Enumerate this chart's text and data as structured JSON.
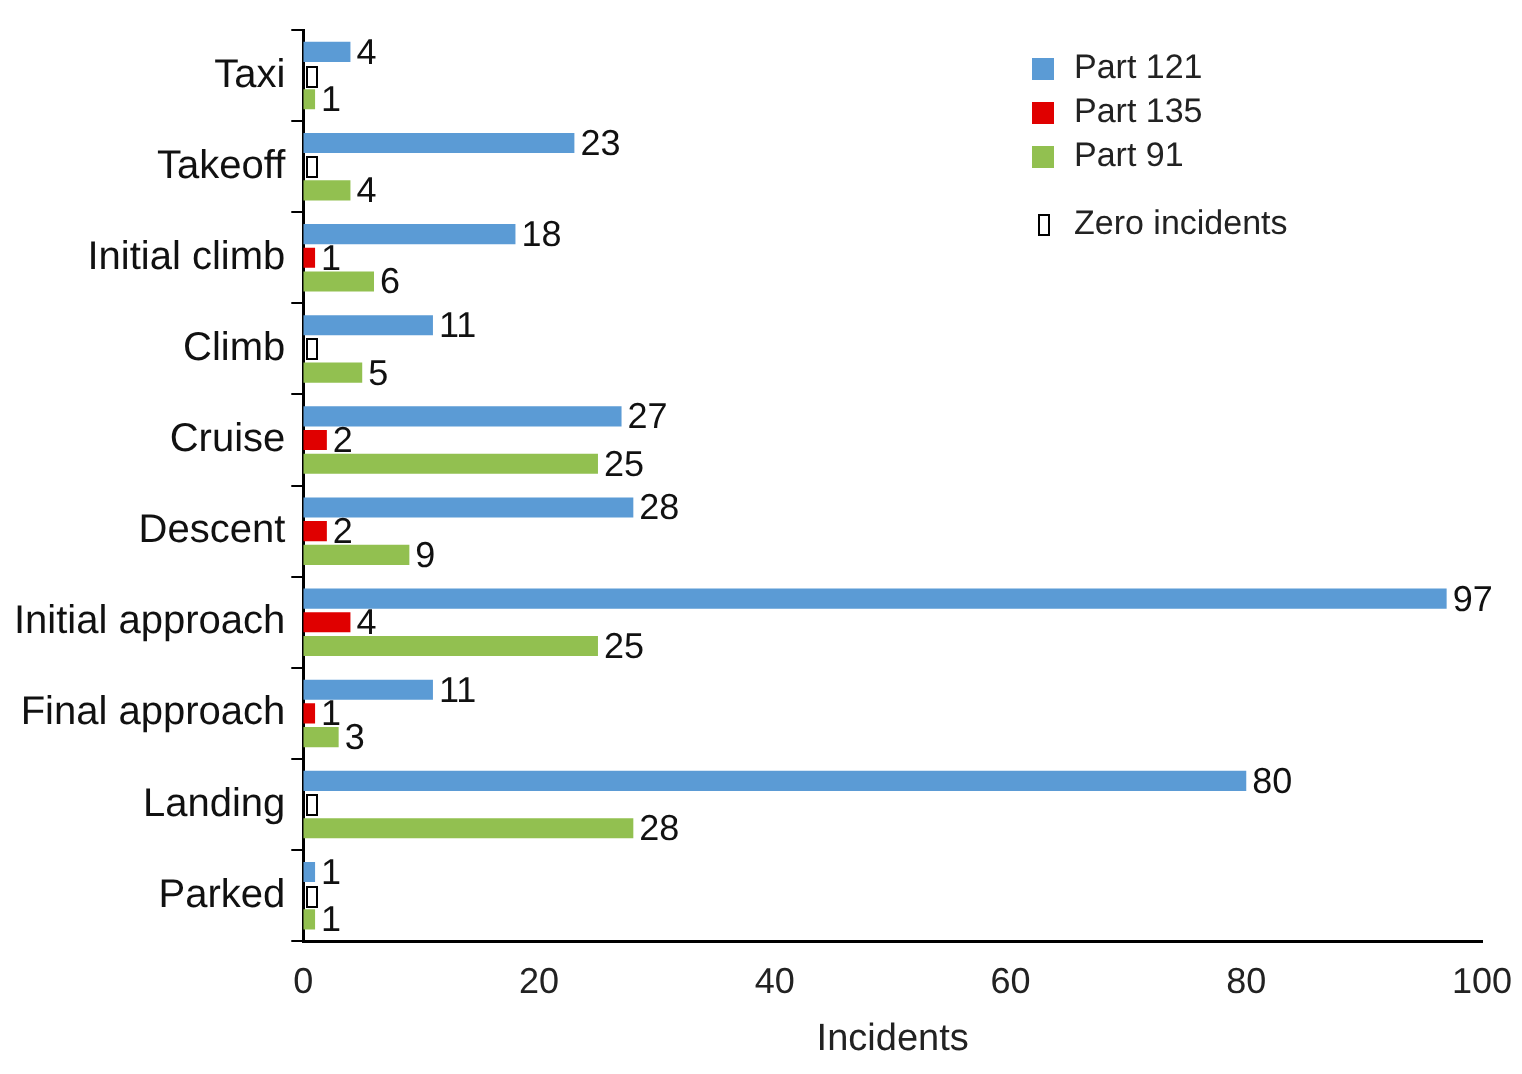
{
  "chart_data": {
    "type": "bar",
    "orientation": "horizontal",
    "xlabel": "Incidents",
    "categories": [
      "Taxi",
      "Takeoff",
      "Initial climb",
      "Climb",
      "Cruise",
      "Descent",
      "Initial approach",
      "Final approach",
      "Landing",
      "Parked"
    ],
    "series": [
      {
        "name": "Part 121",
        "color": "#5b9bd5",
        "values": [
          4,
          23,
          18,
          11,
          27,
          28,
          97,
          11,
          80,
          1
        ],
        "value_labels": [
          "4",
          "23",
          "18",
          "11",
          "27",
          "28",
          "97",
          "11",
          "80",
          "1"
        ]
      },
      {
        "name": "Part 135",
        "color": "#e00000",
        "values": [
          0,
          0,
          1,
          0,
          2,
          2,
          4,
          1,
          0,
          0
        ],
        "value_labels": [
          null,
          null,
          "1",
          null,
          "2",
          "2",
          "4",
          "1",
          null,
          null
        ]
      },
      {
        "name": "Part 91",
        "color": "#92c050",
        "values": [
          1,
          4,
          6,
          5,
          25,
          9,
          25,
          3,
          28,
          1
        ],
        "value_labels": [
          "1",
          "4",
          "6",
          "5",
          "25",
          "9",
          "25",
          "3",
          "28",
          "1"
        ]
      }
    ],
    "xlim": [
      0,
      100
    ],
    "xticks": [
      0,
      20,
      40,
      60,
      80,
      100
    ],
    "legend": "top right",
    "grid": false,
    "annotations": [
      "Zero incidents"
    ]
  }
}
